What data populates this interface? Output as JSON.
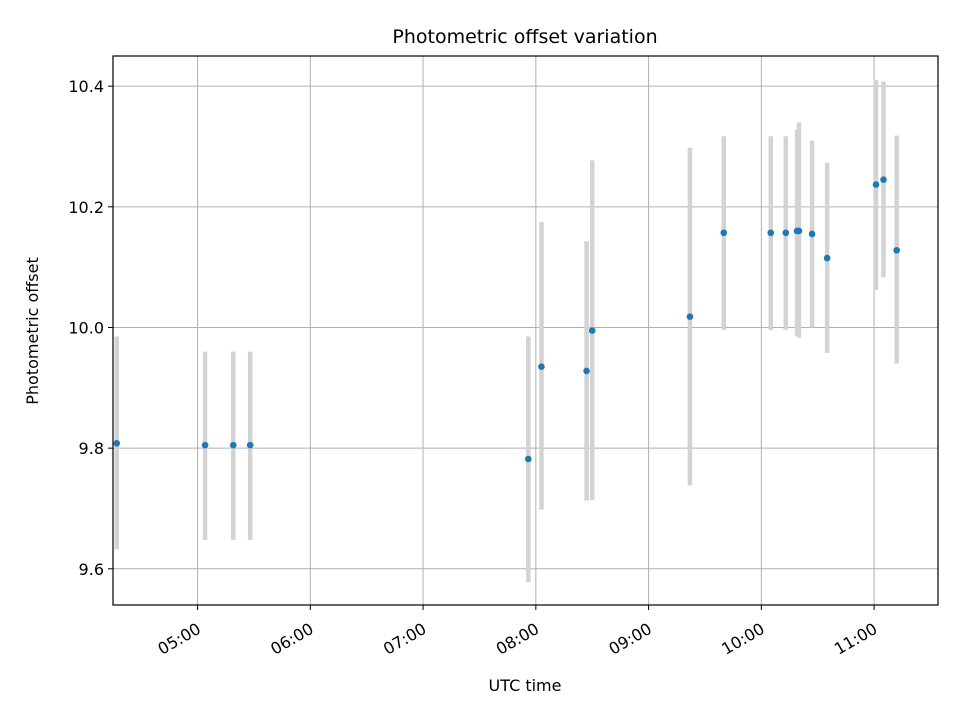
{
  "chart_data": {
    "type": "scatter",
    "title": "Photometric offset variation",
    "xlabel": "UTC time",
    "ylabel": "Photometric offset",
    "xlim": [
      "04:15",
      "11:34"
    ],
    "ylim": [
      9.54,
      10.45
    ],
    "x_ticks": [
      "05:00",
      "06:00",
      "07:00",
      "08:00",
      "09:00",
      "10:00",
      "11:00"
    ],
    "y_ticks": [
      9.6,
      9.8,
      10.0,
      10.2,
      10.4
    ],
    "grid": true,
    "point_color": "#1f77b4",
    "errorbar_color": "#d3d3d3",
    "points": [
      {
        "x": "04:17",
        "y": 9.808,
        "lo": 9.632,
        "hi": 9.985
      },
      {
        "x": "05:04",
        "y": 9.805,
        "lo": 9.648,
        "hi": 9.96
      },
      {
        "x": "05:19",
        "y": 9.805,
        "lo": 9.648,
        "hi": 9.96
      },
      {
        "x": "05:28",
        "y": 9.805,
        "lo": 9.648,
        "hi": 9.96
      },
      {
        "x": "07:56",
        "y": 9.782,
        "lo": 9.578,
        "hi": 9.985
      },
      {
        "x": "08:03",
        "y": 9.935,
        "lo": 9.698,
        "hi": 10.175
      },
      {
        "x": "08:27",
        "y": 9.928,
        "lo": 9.713,
        "hi": 10.143
      },
      {
        "x": "08:30",
        "y": 9.995,
        "lo": 9.714,
        "hi": 10.277
      },
      {
        "x": "09:22",
        "y": 10.018,
        "lo": 9.738,
        "hi": 10.298
      },
      {
        "x": "09:40",
        "y": 10.157,
        "lo": 9.996,
        "hi": 10.317
      },
      {
        "x": "10:05",
        "y": 10.157,
        "lo": 9.996,
        "hi": 10.317
      },
      {
        "x": "10:13",
        "y": 10.157,
        "lo": 9.996,
        "hi": 10.317
      },
      {
        "x": "10:19",
        "y": 10.16,
        "lo": 9.986,
        "hi": 10.328
      },
      {
        "x": "10:20",
        "y": 10.16,
        "lo": 9.983,
        "hi": 10.34
      },
      {
        "x": "10:27",
        "y": 10.155,
        "lo": 10.0,
        "hi": 10.31
      },
      {
        "x": "10:35",
        "y": 10.115,
        "lo": 9.958,
        "hi": 10.273
      },
      {
        "x": "11:01",
        "y": 10.237,
        "lo": 10.062,
        "hi": 10.41
      },
      {
        "x": "11:05",
        "y": 10.245,
        "lo": 10.083,
        "hi": 10.408
      },
      {
        "x": "11:12",
        "y": 10.128,
        "lo": 9.94,
        "hi": 10.318
      }
    ]
  }
}
